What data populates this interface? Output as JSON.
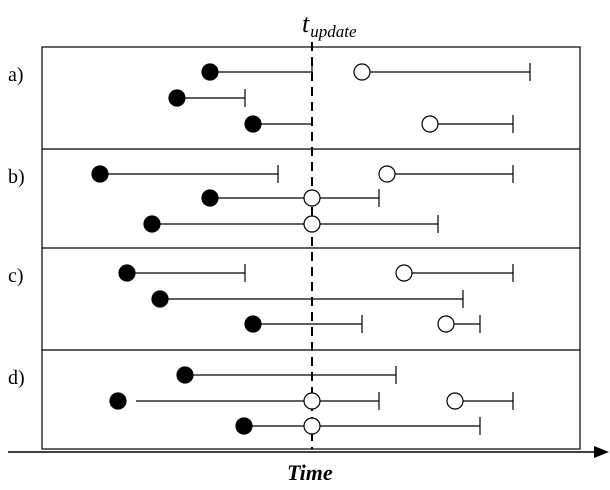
{
  "title": {
    "symbol": "t",
    "subscript": "update"
  },
  "axis_label": "Time",
  "panels": [
    {
      "label": "a)",
      "intervals": [
        {
          "start": 210,
          "end": 312,
          "start_marker": "filled",
          "end_marker": "bar"
        },
        {
          "start": 362,
          "end": 530,
          "start_marker": "open",
          "end_marker": "bar"
        },
        {
          "start": 177,
          "end": 245,
          "start_marker": "filled",
          "end_marker": "bar"
        },
        {
          "start": 253,
          "end": 312,
          "start_marker": "filled",
          "end_marker": "none"
        },
        {
          "start": 430,
          "end": 513,
          "start_marker": "open",
          "end_marker": "bar"
        }
      ]
    },
    {
      "label": "b)",
      "intervals": [
        {
          "start": 100,
          "end": 278,
          "start_marker": "filled",
          "end_marker": "bar"
        },
        {
          "start": 387,
          "end": 513,
          "start_marker": "open",
          "end_marker": "bar"
        },
        {
          "start": 210,
          "end": 379,
          "start_marker": "filled",
          "end_marker": "bar",
          "mid_marker": 312
        },
        {
          "start": 152,
          "end": 438,
          "start_marker": "filled",
          "end_marker": "bar",
          "mid_marker": 312
        }
      ]
    },
    {
      "label": "c)",
      "intervals": [
        {
          "start": 127,
          "end": 245,
          "start_marker": "filled",
          "end_marker": "bar"
        },
        {
          "start": 404,
          "end": 513,
          "start_marker": "open",
          "end_marker": "bar"
        },
        {
          "start": 160,
          "end": 463,
          "start_marker": "filled",
          "end_marker": "bar"
        },
        {
          "start": 253,
          "end": 362,
          "start_marker": "filled",
          "end_marker": "bar"
        },
        {
          "start": 446,
          "end": 480,
          "start_marker": "open",
          "end_marker": "bar"
        }
      ]
    },
    {
      "label": "d)",
      "intervals": [
        {
          "start": 185,
          "end": 396,
          "start_marker": "filled",
          "end_marker": "bar"
        },
        {
          "start": 118,
          "end": 379,
          "start_marker": "filled",
          "end_marker": "bar",
          "mid_marker": 312,
          "gap_after_start": true
        },
        {
          "start": 455,
          "end": 513,
          "start_marker": "open",
          "end_marker": "bar"
        },
        {
          "start": 244,
          "end": 480,
          "start_marker": "filled",
          "end_marker": "bar",
          "mid_marker": 312
        }
      ]
    }
  ]
}
